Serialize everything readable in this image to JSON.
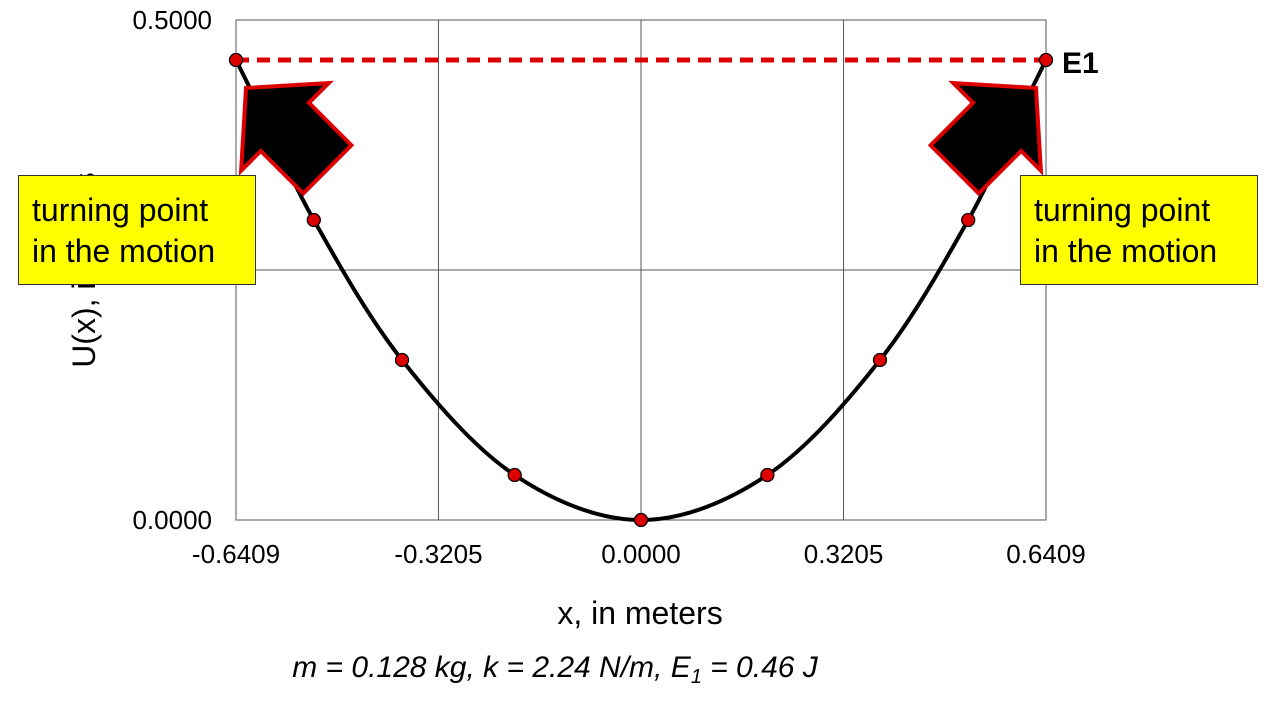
{
  "chart_data": {
    "type": "line",
    "title": "",
    "xlabel": "x, in meters",
    "ylabel": "U(x), in joules",
    "xlim": [
      -0.6409,
      0.6409
    ],
    "ylim": [
      0,
      0.5
    ],
    "x_ticks": [
      "-0.6409",
      "-0.3205",
      "0.0000",
      "0.3205",
      "0.6409"
    ],
    "y_ticks": [
      "0.0000",
      "0.5000"
    ],
    "y_tick_values": [
      0,
      0.5
    ],
    "x_tick_values": [
      -0.6409,
      -0.3205,
      0,
      0.3205,
      0.6409
    ],
    "grid": true,
    "series": [
      {
        "color": "#000000",
        "marker_color": "#dd0000",
        "x": [
          -0.6409,
          -0.6058,
          -0.5178,
          -0.3782,
          -0.2,
          0,
          0.2,
          0.3782,
          0.5178,
          0.6058,
          0.6409
        ],
        "y": [
          0.46,
          0.415,
          0.3,
          0.16,
          0.045,
          0,
          0.045,
          0.16,
          0.3,
          0.415,
          0.46
        ]
      }
    ],
    "energy_line": {
      "label": "E1",
      "y": 0.46,
      "x_range": [
        -0.6409,
        0.6409
      ],
      "color": "#dd0000",
      "style": "dashed"
    },
    "annotations": [
      {
        "id": "left",
        "text_lines": [
          "turning point",
          "in the motion"
        ],
        "points_to_x": -0.6409,
        "fill": "#ffff00",
        "arrow_color": "#000000",
        "arrow_outline": "#dd0000"
      },
      {
        "id": "right",
        "text_lines": [
          "turning point",
          "in the motion"
        ],
        "points_to_x": 0.6409,
        "fill": "#ffff00",
        "arrow_color": "#000000",
        "arrow_outline": "#dd0000"
      }
    ],
    "parameters_text": "m = 0.128 kg, k = 2.24 N/m, E",
    "parameters_subscript": "1",
    "parameters_suffix": " = 0.46 J"
  }
}
